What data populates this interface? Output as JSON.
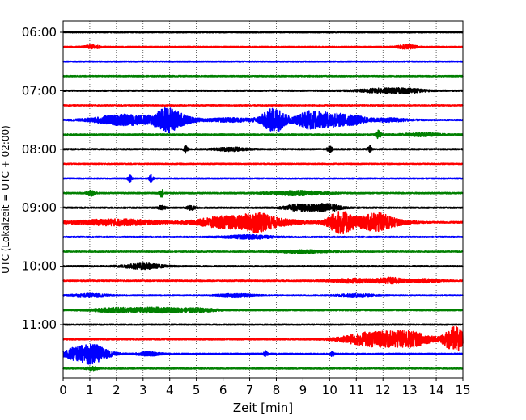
{
  "chart_data": {
    "type": "line",
    "title": "",
    "xlabel": "Zeit  [min]",
    "ylabel": "UTC (Lokalzeit = UTC + 02:00)",
    "xlim": [
      0,
      15
    ],
    "x_ticks": [
      0,
      1,
      2,
      3,
      4,
      5,
      6,
      7,
      8,
      9,
      10,
      11,
      12,
      13,
      14,
      15
    ],
    "x_tick_labels": [
      "0",
      "1",
      "2",
      "3",
      "4",
      "5",
      "6",
      "7",
      "8",
      "9",
      "10",
      "11",
      "12",
      "13",
      "14",
      "15"
    ],
    "y_tick_labels": [
      "06:00",
      "07:00",
      "08:00",
      "09:00",
      "10:00",
      "11:00"
    ],
    "y_tick_rows": [
      0,
      4,
      8,
      12,
      16,
      20
    ],
    "grid": "vertical dotted",
    "color_cycle": [
      "#000000",
      "#ff0000",
      "#0000ff",
      "#008000"
    ],
    "series": [
      {
        "start": "06:00",
        "color": "#000000",
        "noise": 0.1,
        "events": []
      },
      {
        "start": "06:15",
        "color": "#ff0000",
        "noise": 0.1,
        "events": [
          {
            "t": 1.1,
            "amp": 0.3,
            "dur": 0.2
          },
          {
            "t": 12.9,
            "amp": 0.35,
            "dur": 0.25
          }
        ]
      },
      {
        "start": "06:30",
        "color": "#0000ff",
        "noise": 0.1,
        "events": []
      },
      {
        "start": "06:45",
        "color": "#008000",
        "noise": 0.1,
        "events": []
      },
      {
        "start": "07:00",
        "color": "#000000",
        "noise": 0.12,
        "events": [
          {
            "t": 12.0,
            "amp": 0.35,
            "dur": 0.6
          },
          {
            "t": 13.0,
            "amp": 0.3,
            "dur": 0.4
          }
        ]
      },
      {
        "start": "07:15",
        "color": "#ff0000",
        "noise": 0.1,
        "events": []
      },
      {
        "start": "07:30",
        "color": "#0000ff",
        "noise": 0.12,
        "events": [
          {
            "t": 2.3,
            "amp": 0.9,
            "dur": 0.8
          },
          {
            "t": 3.9,
            "amp": 1.6,
            "dur": 0.35
          },
          {
            "t": 4.3,
            "amp": 0.6,
            "dur": 0.5
          },
          {
            "t": 6.3,
            "amp": 0.3,
            "dur": 0.6
          },
          {
            "t": 7.7,
            "amp": 0.7,
            "dur": 0.3
          },
          {
            "t": 8.0,
            "amp": 1.6,
            "dur": 0.3
          },
          {
            "t": 9.2,
            "amp": 1.3,
            "dur": 0.35
          },
          {
            "t": 10.1,
            "amp": 1.2,
            "dur": 0.5
          },
          {
            "t": 11.0,
            "amp": 0.5,
            "dur": 0.3
          },
          {
            "t": 12.2,
            "amp": 0.3,
            "dur": 0.5
          }
        ]
      },
      {
        "start": "07:45",
        "color": "#008000",
        "noise": 0.12,
        "events": [
          {
            "t": 11.85,
            "amp": 0.8,
            "dur": 0.06
          },
          {
            "t": 13.5,
            "amp": 0.25,
            "dur": 0.5
          }
        ]
      },
      {
        "start": "08:00",
        "color": "#000000",
        "noise": 0.12,
        "events": [
          {
            "t": 4.6,
            "amp": 0.6,
            "dur": 0.05
          },
          {
            "t": 6.3,
            "amp": 0.3,
            "dur": 0.4
          },
          {
            "t": 10.0,
            "amp": 0.55,
            "dur": 0.06
          },
          {
            "t": 11.5,
            "amp": 0.55,
            "dur": 0.05
          }
        ]
      },
      {
        "start": "08:15",
        "color": "#ff0000",
        "noise": 0.1,
        "events": []
      },
      {
        "start": "08:30",
        "color": "#0000ff",
        "noise": 0.1,
        "events": [
          {
            "t": 2.5,
            "amp": 0.55,
            "dur": 0.05
          },
          {
            "t": 3.3,
            "amp": 0.7,
            "dur": 0.05
          }
        ]
      },
      {
        "start": "08:45",
        "color": "#008000",
        "noise": 0.12,
        "events": [
          {
            "t": 1.05,
            "amp": 0.45,
            "dur": 0.1
          },
          {
            "t": 3.7,
            "amp": 0.7,
            "dur": 0.05
          },
          {
            "t": 8.8,
            "amp": 0.35,
            "dur": 0.7
          }
        ]
      },
      {
        "start": "09:00",
        "color": "#000000",
        "noise": 0.12,
        "events": [
          {
            "t": 3.7,
            "amp": 0.3,
            "dur": 0.1
          },
          {
            "t": 4.8,
            "amp": 0.4,
            "dur": 0.1
          },
          {
            "t": 8.9,
            "amp": 0.6,
            "dur": 0.4
          },
          {
            "t": 9.9,
            "amp": 0.65,
            "dur": 0.35
          }
        ]
      },
      {
        "start": "09:15",
        "color": "#ff0000",
        "noise": 0.14,
        "events": [
          {
            "t": 2.0,
            "amp": 0.5,
            "dur": 1.1
          },
          {
            "t": 6.0,
            "amp": 1.0,
            "dur": 0.7
          },
          {
            "t": 7.3,
            "amp": 1.4,
            "dur": 0.45
          },
          {
            "t": 8.3,
            "amp": 0.4,
            "dur": 0.6
          },
          {
            "t": 10.4,
            "amp": 1.9,
            "dur": 0.35
          },
          {
            "t": 11.2,
            "amp": 0.5,
            "dur": 0.4
          },
          {
            "t": 11.8,
            "amp": 1.3,
            "dur": 0.35
          },
          {
            "t": 12.4,
            "amp": 0.4,
            "dur": 0.5
          }
        ]
      },
      {
        "start": "09:30",
        "color": "#0000ff",
        "noise": 0.12,
        "events": [
          {
            "t": 7.0,
            "amp": 0.3,
            "dur": 0.6
          }
        ]
      },
      {
        "start": "09:45",
        "color": "#008000",
        "noise": 0.1,
        "events": [
          {
            "t": 9.0,
            "amp": 0.25,
            "dur": 0.6
          }
        ]
      },
      {
        "start": "10:00",
        "color": "#000000",
        "noise": 0.12,
        "events": [
          {
            "t": 3.0,
            "amp": 0.45,
            "dur": 0.5
          }
        ]
      },
      {
        "start": "10:15",
        "color": "#ff0000",
        "noise": 0.12,
        "events": [
          {
            "t": 10.9,
            "amp": 0.35,
            "dur": 0.6
          },
          {
            "t": 12.3,
            "amp": 0.5,
            "dur": 0.35
          },
          {
            "t": 13.6,
            "amp": 0.3,
            "dur": 0.4
          }
        ]
      },
      {
        "start": "10:30",
        "color": "#0000ff",
        "noise": 0.12,
        "events": [
          {
            "t": 1.0,
            "amp": 0.25,
            "dur": 0.5
          },
          {
            "t": 6.5,
            "amp": 0.25,
            "dur": 0.5
          },
          {
            "t": 11.0,
            "amp": 0.25,
            "dur": 0.5
          }
        ]
      },
      {
        "start": "10:45",
        "color": "#008000",
        "noise": 0.12,
        "events": [
          {
            "t": 2.0,
            "amp": 0.35,
            "dur": 0.6
          },
          {
            "t": 3.5,
            "amp": 0.4,
            "dur": 0.6
          },
          {
            "t": 5.0,
            "amp": 0.3,
            "dur": 0.5
          }
        ]
      },
      {
        "start": "11:00",
        "color": "#000000",
        "noise": 0.1,
        "events": []
      },
      {
        "start": "11:15",
        "color": "#ff0000",
        "noise": 0.12,
        "events": [
          {
            "t": 11.0,
            "amp": 0.55,
            "dur": 0.6
          },
          {
            "t": 11.8,
            "amp": 1.0,
            "dur": 0.55
          },
          {
            "t": 12.8,
            "amp": 1.2,
            "dur": 0.45
          },
          {
            "t": 13.5,
            "amp": 0.5,
            "dur": 0.4
          },
          {
            "t": 14.7,
            "amp": 2.2,
            "dur": 0.3
          }
        ]
      },
      {
        "start": "11:30",
        "color": "#0000ff",
        "noise": 0.12,
        "events": [
          {
            "t": 0.5,
            "amp": 1.0,
            "dur": 0.4
          },
          {
            "t": 1.1,
            "amp": 1.3,
            "dur": 0.3
          },
          {
            "t": 1.6,
            "amp": 0.4,
            "dur": 0.3
          },
          {
            "t": 3.2,
            "amp": 0.3,
            "dur": 0.3
          },
          {
            "t": 7.6,
            "amp": 0.5,
            "dur": 0.05
          },
          {
            "t": 10.1,
            "amp": 0.4,
            "dur": 0.05
          }
        ]
      },
      {
        "start": "11:45",
        "color": "#008000",
        "noise": 0.1,
        "events": [
          {
            "t": 1.1,
            "amp": 0.3,
            "dur": 0.15
          }
        ]
      }
    ]
  }
}
